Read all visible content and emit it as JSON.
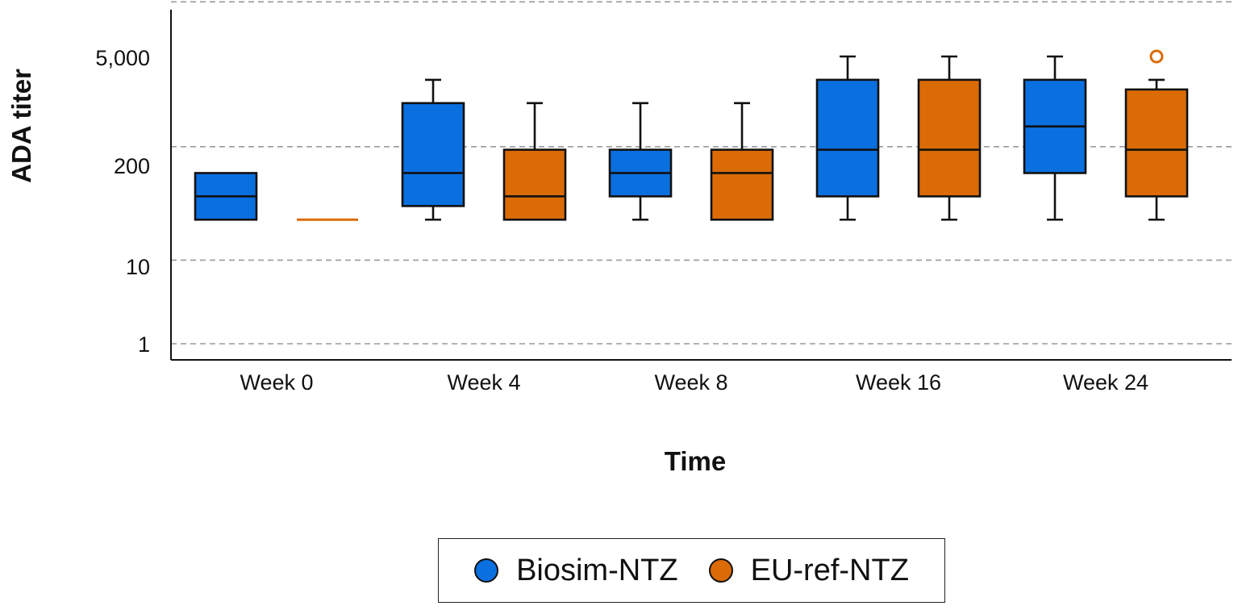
{
  "chart_data": {
    "type": "boxplot",
    "title": "",
    "xlabel": "Time",
    "ylabel": "ADA titer",
    "yscale": "log",
    "ylim": [
      0.5,
      30000
    ],
    "ytick_values": [
      1,
      10,
      200,
      5000
    ],
    "ytick_labels": [
      "1",
      "10",
      "200",
      "5,000"
    ],
    "y_gridlines": [
      1,
      12,
      350,
      26000
    ],
    "categories": [
      "Week 0",
      "Week 4",
      "Week 8",
      "Week 16",
      "Week 24"
    ],
    "series": [
      {
        "name": "Biosim-NTZ",
        "color": "#0a6fdf",
        "boxes": [
          {
            "min": 40,
            "q1": 40,
            "median": 80,
            "q3": 160,
            "max": 160,
            "outliers": []
          },
          {
            "min": 40,
            "q1": 60,
            "median": 160,
            "q3": 1280,
            "max": 2560,
            "outliers": []
          },
          {
            "min": 40,
            "q1": 80,
            "median": 160,
            "q3": 320,
            "max": 1280,
            "outliers": []
          },
          {
            "min": 40,
            "q1": 80,
            "median": 320,
            "q3": 2560,
            "max": 5120,
            "outliers": []
          },
          {
            "min": 40,
            "q1": 160,
            "median": 640,
            "q3": 2560,
            "max": 5120,
            "outliers": []
          }
        ]
      },
      {
        "name": "EU-ref-NTZ",
        "color": "#db6b06",
        "boxes": [
          {
            "min": 40,
            "q1": 40,
            "median": 40,
            "q3": 40,
            "max": 40,
            "outliers": []
          },
          {
            "min": 40,
            "q1": 40,
            "median": 80,
            "q3": 320,
            "max": 1280,
            "outliers": []
          },
          {
            "min": 40,
            "q1": 40,
            "median": 160,
            "q3": 320,
            "max": 1280,
            "outliers": []
          },
          {
            "min": 40,
            "q1": 80,
            "median": 320,
            "q3": 2560,
            "max": 5120,
            "outliers": []
          },
          {
            "min": 40,
            "q1": 80,
            "median": 320,
            "q3": 1920,
            "max": 2560,
            "outliers": [
              5120
            ]
          }
        ]
      }
    ],
    "legend": {
      "position": "bottom-center",
      "entries": [
        "Biosim-NTZ",
        "EU-ref-NTZ"
      ]
    }
  }
}
